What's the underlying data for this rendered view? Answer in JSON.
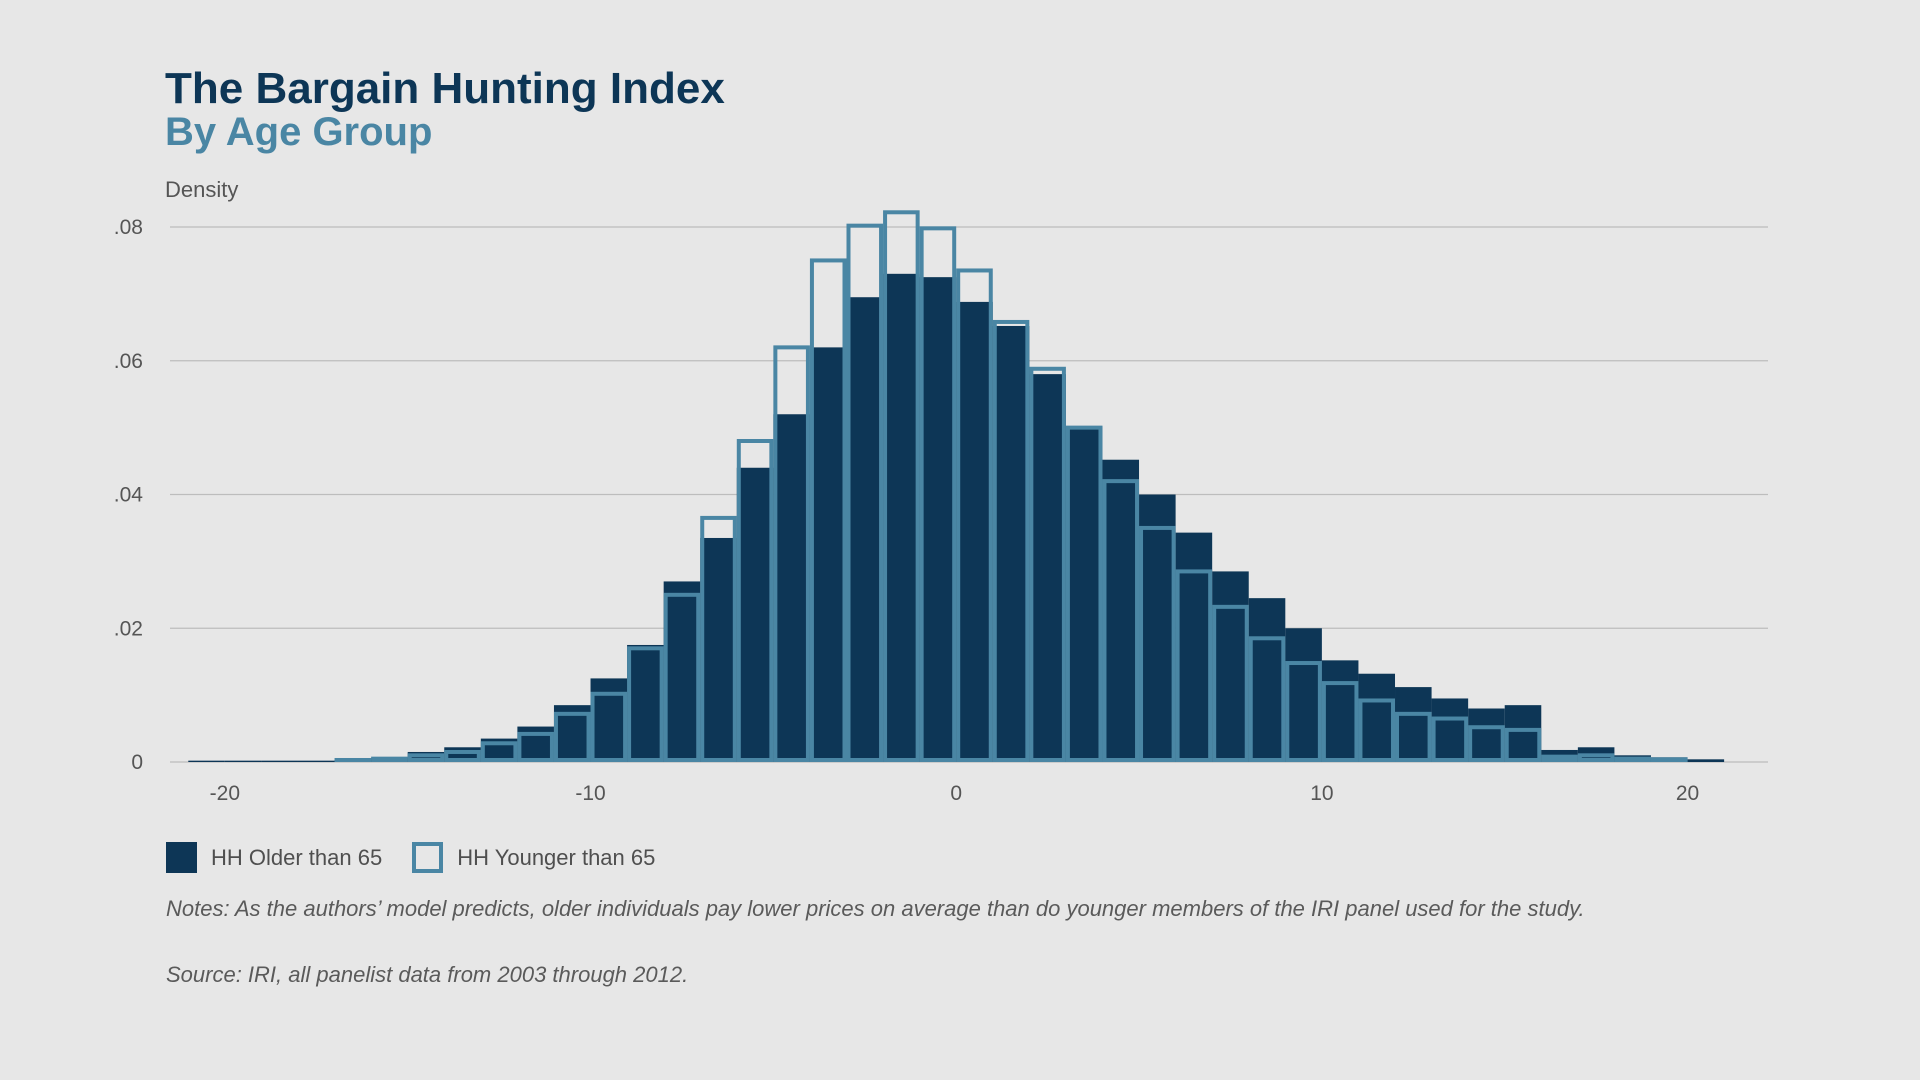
{
  "chart_data": {
    "type": "bar",
    "title": "The Bargain Hunting Index",
    "subtitle": "By Age Group",
    "ylabel": "Density",
    "xlabel": "",
    "xlim": [
      -21.5,
      22.2
    ],
    "ylim": [
      0,
      0.08
    ],
    "x_ticks": [
      -20,
      -10,
      0,
      10,
      20
    ],
    "x_tick_labels": [
      "-20",
      "-10",
      "0",
      "10",
      "20"
    ],
    "y_ticks": [
      0,
      0.02,
      0.04,
      0.06,
      0.08
    ],
    "y_tick_labels": [
      "0",
      ".02",
      ".04",
      ".06",
      ".08"
    ],
    "grid": true,
    "legend_position": "bottom-left",
    "bin_edges": [
      -21,
      -20,
      -19,
      -18,
      -17,
      -16,
      -15,
      -14,
      -13,
      -12,
      -11,
      -10,
      -9,
      -8,
      -7,
      -6,
      -5,
      -4,
      -3,
      -2,
      -1,
      0,
      1,
      2,
      3,
      4,
      5,
      6,
      7,
      8,
      9,
      10,
      11,
      12,
      13,
      14,
      15,
      16,
      17,
      18,
      19,
      20,
      21
    ],
    "series": [
      {
        "name": "HH Older than 65",
        "style": "filled",
        "color": "#0d3656",
        "values": [
          0.0002,
          0.0002,
          0.0002,
          0.0002,
          0.0003,
          0.0006,
          0.0015,
          0.0022,
          0.0035,
          0.0053,
          0.0085,
          0.0125,
          0.0175,
          0.027,
          0.0335,
          0.044,
          0.052,
          0.062,
          0.0695,
          0.073,
          0.0725,
          0.0688,
          0.0652,
          0.058,
          0.0502,
          0.0452,
          0.04,
          0.0343,
          0.0285,
          0.0245,
          0.02,
          0.0152,
          0.0132,
          0.0112,
          0.0095,
          0.008,
          0.0085,
          0.0018,
          0.0022,
          0.001,
          0.0007,
          0.0004
        ]
      },
      {
        "name": "HH Younger than 65",
        "style": "outline",
        "color": "#4a86a4",
        "values": [
          0.0002,
          0.0002,
          0.0002,
          0.0002,
          0.0003,
          0.0005,
          0.001,
          0.0015,
          0.0028,
          0.0042,
          0.0072,
          0.0102,
          0.017,
          0.025,
          0.0365,
          0.048,
          0.062,
          0.075,
          0.0802,
          0.0822,
          0.0798,
          0.0735,
          0.0658,
          0.0588,
          0.05,
          0.042,
          0.035,
          0.0285,
          0.0232,
          0.0185,
          0.0148,
          0.0118,
          0.0092,
          0.0072,
          0.0065,
          0.0052,
          0.0048,
          0.0008,
          0.001,
          0.0005,
          0.0004,
          0.0002
        ]
      }
    ]
  },
  "legend": {
    "older_label": "HH Older than 65",
    "younger_label": "HH Younger than 65"
  },
  "notes": "Notes: As the authors’ model predicts, older individuals pay lower prices on average than do younger members of the IRI panel used for the study.",
  "source": "Source: IRI, all panelist data from 2003 through 2012.",
  "colors": {
    "background": "#e7e7e7",
    "older_fill": "#0d3656",
    "younger_outline": "#4a86a4",
    "gridline": "#bdbdbd",
    "title": "#0d3656",
    "subtitle": "#4a86a4"
  }
}
